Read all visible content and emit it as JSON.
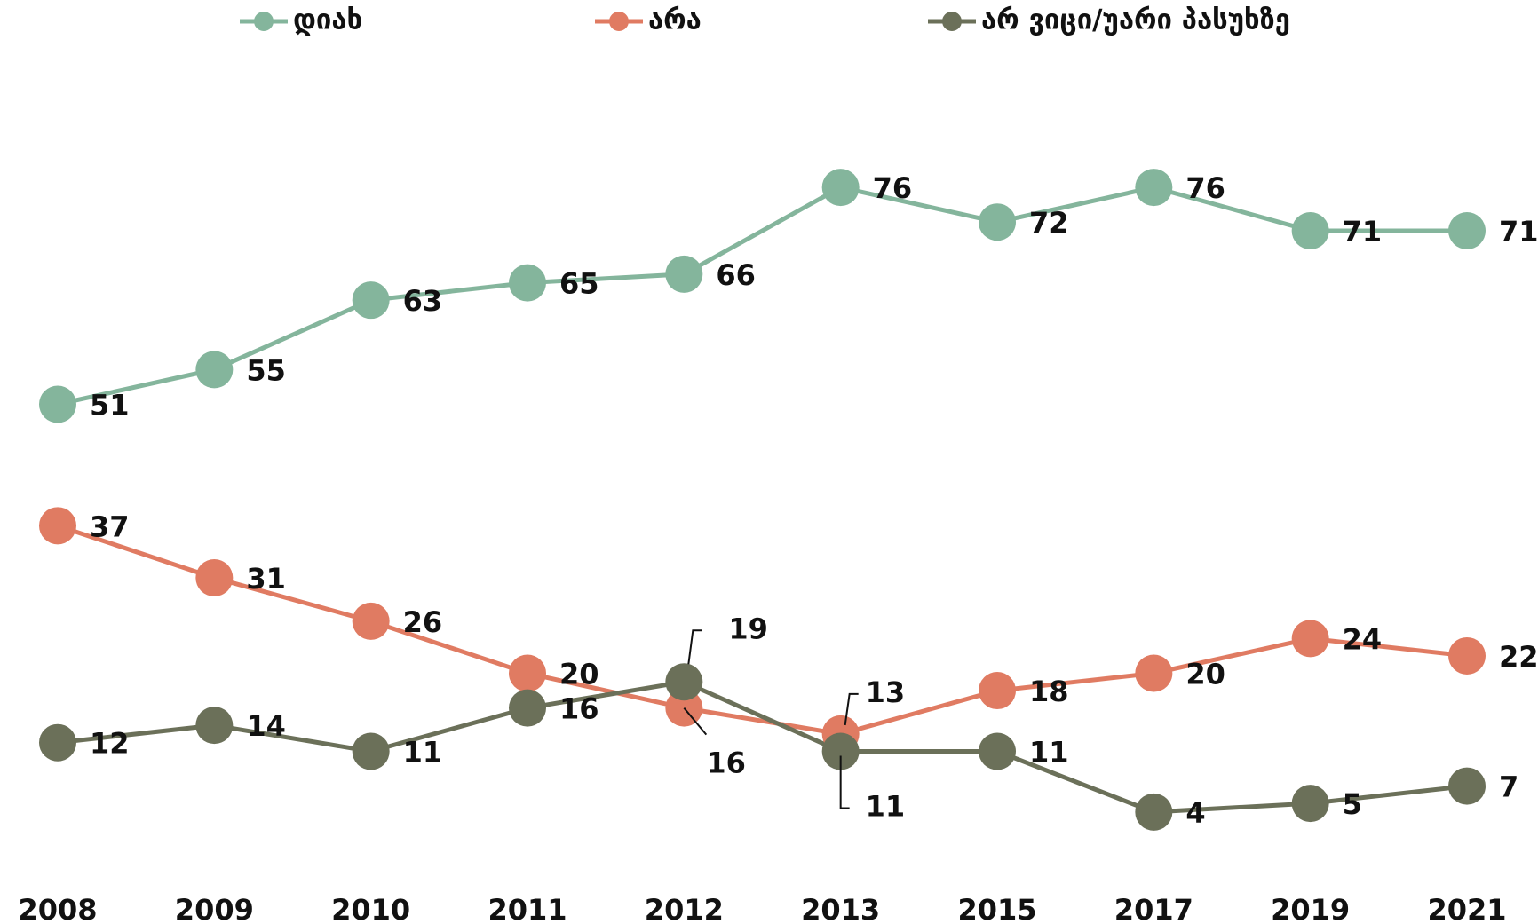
{
  "chart_data": {
    "type": "line",
    "categories": [
      "2008",
      "2009",
      "2010",
      "2011",
      "2012",
      "2013",
      "2015",
      "2017",
      "2019",
      "2021"
    ],
    "series": [
      {
        "name": "დიახ",
        "color": "#84b59c",
        "values": [
          51,
          55,
          63,
          65,
          66,
          76,
          72,
          76,
          71,
          71
        ]
      },
      {
        "name": "არა",
        "color": "#e07b62",
        "values": [
          37,
          31,
          26,
          20,
          16,
          13,
          18,
          20,
          24,
          22
        ]
      },
      {
        "name": "არ ვიცი/უარი პასუხზე",
        "color": "#6b7059",
        "values": [
          12,
          14,
          11,
          16,
          19,
          11,
          11,
          4,
          5,
          7
        ]
      }
    ],
    "ylim": [
      0,
      80
    ],
    "grid": false,
    "legend": "top"
  }
}
